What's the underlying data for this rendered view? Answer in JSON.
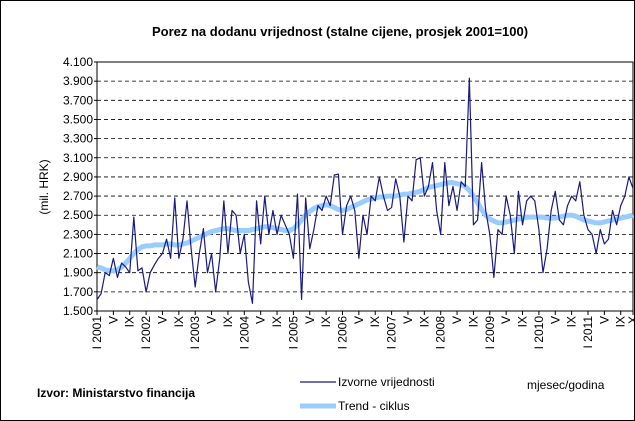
{
  "chart_data": {
    "type": "line",
    "title": "Porez na dodanu vrijednost (stalne cijene, prosjek 2001=100)",
    "y_label": "(mil. HRK)",
    "x_label": "mjesec/godina",
    "source": "Izvor: Ministarstvo financija",
    "categories": [
      "I 2001",
      null,
      null,
      null,
      "V",
      null,
      null,
      null,
      "IX",
      null,
      null,
      null,
      "I 2002",
      null,
      null,
      null,
      "V",
      null,
      null,
      null,
      "IX",
      null,
      null,
      null,
      "I 2003",
      null,
      null,
      null,
      "V",
      null,
      null,
      null,
      "IX",
      null,
      null,
      null,
      "I 2004",
      null,
      null,
      null,
      "V",
      null,
      null,
      null,
      "IX",
      null,
      null,
      null,
      "I 2005",
      null,
      null,
      null,
      "V",
      null,
      null,
      null,
      "IX",
      null,
      null,
      null,
      "I 2006",
      null,
      null,
      null,
      "V",
      null,
      null,
      null,
      "IX",
      null,
      null,
      null,
      "I 2007",
      null,
      null,
      null,
      "V",
      null,
      null,
      null,
      "IX",
      null,
      null,
      null,
      "I 2008",
      null,
      null,
      null,
      "V",
      null,
      null,
      null,
      "IX",
      null,
      null,
      null,
      "I 2009",
      null,
      null,
      null,
      "V",
      null,
      null,
      null,
      "IX",
      null,
      null,
      null,
      "I 2010",
      null,
      null,
      null,
      "V",
      null,
      null,
      null,
      "IX",
      null,
      null,
      null,
      "I 2011",
      null,
      null,
      null,
      "V",
      null,
      null,
      null,
      "IX",
      null,
      null,
      "X"
    ],
    "series": [
      {
        "name": "Izvorne vrijednosti",
        "color": "#1a1a80",
        "width": 1.2,
        "values": [
          1620,
          1680,
          1900,
          1870,
          2050,
          1850,
          2000,
          1960,
          1900,
          2480,
          1920,
          1950,
          1700,
          1900,
          1980,
          2050,
          2100,
          2250,
          2050,
          2680,
          2050,
          2250,
          2650,
          2150,
          1750,
          2100,
          2360,
          1900,
          2100,
          1700,
          2050,
          2650,
          2100,
          2550,
          2500,
          2100,
          2300,
          1800,
          1580,
          2650,
          2200,
          2700,
          2300,
          2550,
          2300,
          2500,
          2400,
          2300,
          2050,
          2720,
          1620,
          2680,
          2150,
          2350,
          2600,
          2550,
          2700,
          2600,
          2920,
          2930,
          2300,
          2600,
          2700,
          2550,
          2050,
          2500,
          2300,
          2700,
          2650,
          2900,
          2700,
          2550,
          2580,
          2880,
          2700,
          2220,
          2700,
          2650,
          3080,
          3100,
          2700,
          2800,
          3050,
          2550,
          2300,
          3050,
          2600,
          2800,
          2550,
          2850,
          2800,
          3930,
          2400,
          2450,
          3050,
          2550,
          2300,
          1850,
          2350,
          2300,
          2700,
          2500,
          2100,
          2750,
          2400,
          2650,
          2700,
          2650,
          2350,
          1900,
          2150,
          2550,
          2750,
          2450,
          2400,
          2600,
          2700,
          2650,
          2850,
          2500,
          2350,
          2300,
          2100,
          2350,
          2200,
          2250,
          2550,
          2400,
          2600,
          2700,
          2900,
          2780
        ]
      },
      {
        "name": "Trend - ciklus",
        "color": "#99ccff",
        "width": 5,
        "values": [
          1960,
          1950,
          1930,
          1920,
          1920,
          1930,
          1960,
          2000,
          2050,
          2100,
          2140,
          2170,
          2180,
          2180,
          2190,
          2190,
          2190,
          2200,
          2200,
          2190,
          2190,
          2200,
          2210,
          2230,
          2250,
          2270,
          2290,
          2310,
          2330,
          2340,
          2350,
          2360,
          2360,
          2350,
          2340,
          2340,
          2340,
          2340,
          2350,
          2360,
          2370,
          2380,
          2380,
          2370,
          2360,
          2350,
          2340,
          2340,
          2360,
          2400,
          2450,
          2500,
          2540,
          2570,
          2590,
          2600,
          2610,
          2600,
          2580,
          2560,
          2550,
          2560,
          2580,
          2600,
          2620,
          2640,
          2660,
          2670,
          2680,
          2690,
          2690,
          2700,
          2700,
          2700,
          2710,
          2720,
          2720,
          2730,
          2740,
          2750,
          2770,
          2790,
          2800,
          2810,
          2820,
          2830,
          2840,
          2840,
          2830,
          2820,
          2800,
          2760,
          2700,
          2630,
          2560,
          2500,
          2460,
          2440,
          2420,
          2420,
          2430,
          2440,
          2450,
          2460,
          2470,
          2480,
          2480,
          2480,
          2480,
          2480,
          2470,
          2470,
          2470,
          2480,
          2490,
          2500,
          2500,
          2490,
          2470,
          2450,
          2440,
          2430,
          2420,
          2420,
          2430,
          2440,
          2450,
          2460,
          2470,
          2480,
          2490,
          2500
        ]
      }
    ],
    "ylim": [
      1500,
      4100
    ],
    "yticks": [
      {
        "value": 1500,
        "label": "1.500"
      },
      {
        "value": 1700,
        "label": "1.700"
      },
      {
        "value": 1900,
        "label": "1.900"
      },
      {
        "value": 2100,
        "label": "2.100"
      },
      {
        "value": 2300,
        "label": "2.300"
      },
      {
        "value": 2500,
        "label": "2.500"
      },
      {
        "value": 2700,
        "label": "2.700"
      },
      {
        "value": 2900,
        "label": "2.900"
      },
      {
        "value": 3100,
        "label": "3.100"
      },
      {
        "value": 3300,
        "label": "3.300"
      },
      {
        "value": 3500,
        "label": "3.500"
      },
      {
        "value": 3700,
        "label": "3.700"
      },
      {
        "value": 3900,
        "label": "3.900"
      },
      {
        "value": 4100,
        "label": "4.100"
      }
    ],
    "grid": true
  }
}
